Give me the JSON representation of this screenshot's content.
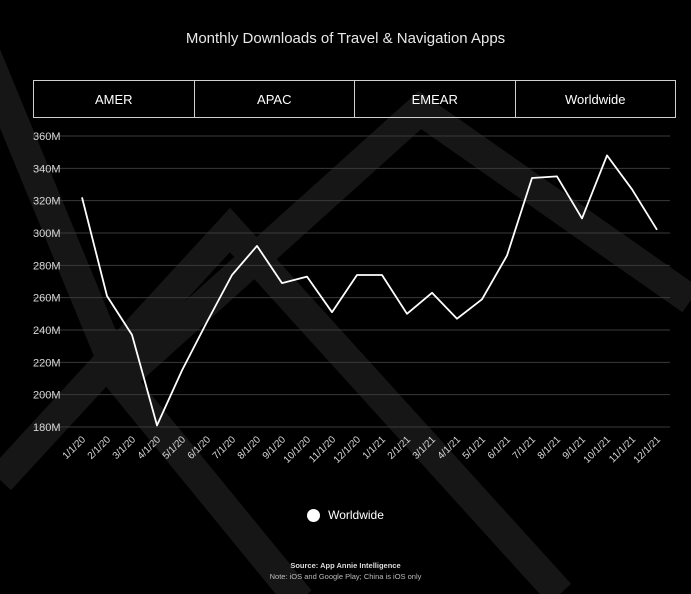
{
  "title": "Monthly Downloads of Travel & Navigation Apps",
  "tabs": [
    {
      "label": "AMER"
    },
    {
      "label": "APAC"
    },
    {
      "label": "EMEAR"
    },
    {
      "label": "Worldwide"
    }
  ],
  "legend": {
    "label": "Worldwide",
    "color": "#ffffff"
  },
  "footer": {
    "source": "Source: App Annie Intelligence",
    "note": "Note: iOS and Google Play; China is iOS only"
  },
  "chart_data": {
    "type": "line",
    "x": [
      "1/1/20",
      "2/1/20",
      "3/1/20",
      "4/1/20",
      "5/1/20",
      "6/1/20",
      "7/1/20",
      "8/1/20",
      "9/1/20",
      "10/1/20",
      "11/1/20",
      "12/1/20",
      "1/1/21",
      "2/1/21",
      "3/1/21",
      "4/1/21",
      "5/1/21",
      "6/1/21",
      "7/1/21",
      "8/1/21",
      "9/1/21",
      "10/1/21",
      "11/1/21",
      "12/1/21"
    ],
    "series": [
      {
        "name": "Worldwide",
        "color": "#ffffff",
        "values": [
          322,
          261,
          237,
          181,
          215,
          245,
          274,
          292,
          269,
          273,
          251,
          274,
          274,
          250,
          263,
          247,
          259,
          286,
          334,
          335,
          309,
          348,
          327,
          302
        ]
      }
    ],
    "yticks": [
      "360M",
      "340M",
      "320M",
      "300M",
      "280M",
      "260M",
      "240M",
      "220M",
      "200M",
      "180M"
    ],
    "ylim": [
      180,
      360
    ],
    "grid": true,
    "legend_position": "bottom-center"
  }
}
